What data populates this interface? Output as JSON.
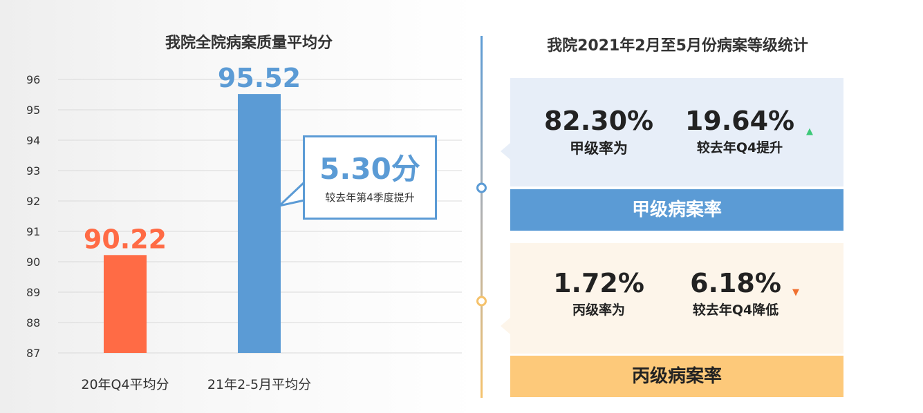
{
  "left": {
    "title": "我院全院病案质量平均分",
    "callout": {
      "value": "5.30分",
      "description": "较去年第4季度提升"
    }
  },
  "chart_data": {
    "type": "bar",
    "title": "我院全院病案质量平均分",
    "categories": [
      "20年Q4平均分",
      "21年2-5月平均分"
    ],
    "values": [
      90.22,
      95.52
    ],
    "value_labels": [
      "90.22",
      "95.52"
    ],
    "colors": [
      "#ff6b45",
      "#5b9bd5"
    ],
    "ylim": [
      87,
      96
    ],
    "yticks": [
      "87",
      "88",
      "89",
      "90",
      "91",
      "92",
      "93",
      "94",
      "95",
      "96"
    ],
    "xlabel": "",
    "ylabel": "",
    "grid": true
  },
  "right": {
    "title": "我院2021年2月至5月份病案等级统计",
    "grade_a": {
      "rate": "82.30%",
      "rate_label": "甲级率为",
      "change": "19.64%",
      "change_label": "较去年Q4提升",
      "arrow": "▲",
      "arrow_color": "#3cc878",
      "band": "甲级病案率"
    },
    "grade_c": {
      "rate": "1.72%",
      "rate_label": "丙级率为",
      "change": "6.18%",
      "change_label": "较去年Q4降低",
      "arrow": "▼",
      "arrow_color": "#f07030",
      "band": "丙级病案率"
    }
  }
}
